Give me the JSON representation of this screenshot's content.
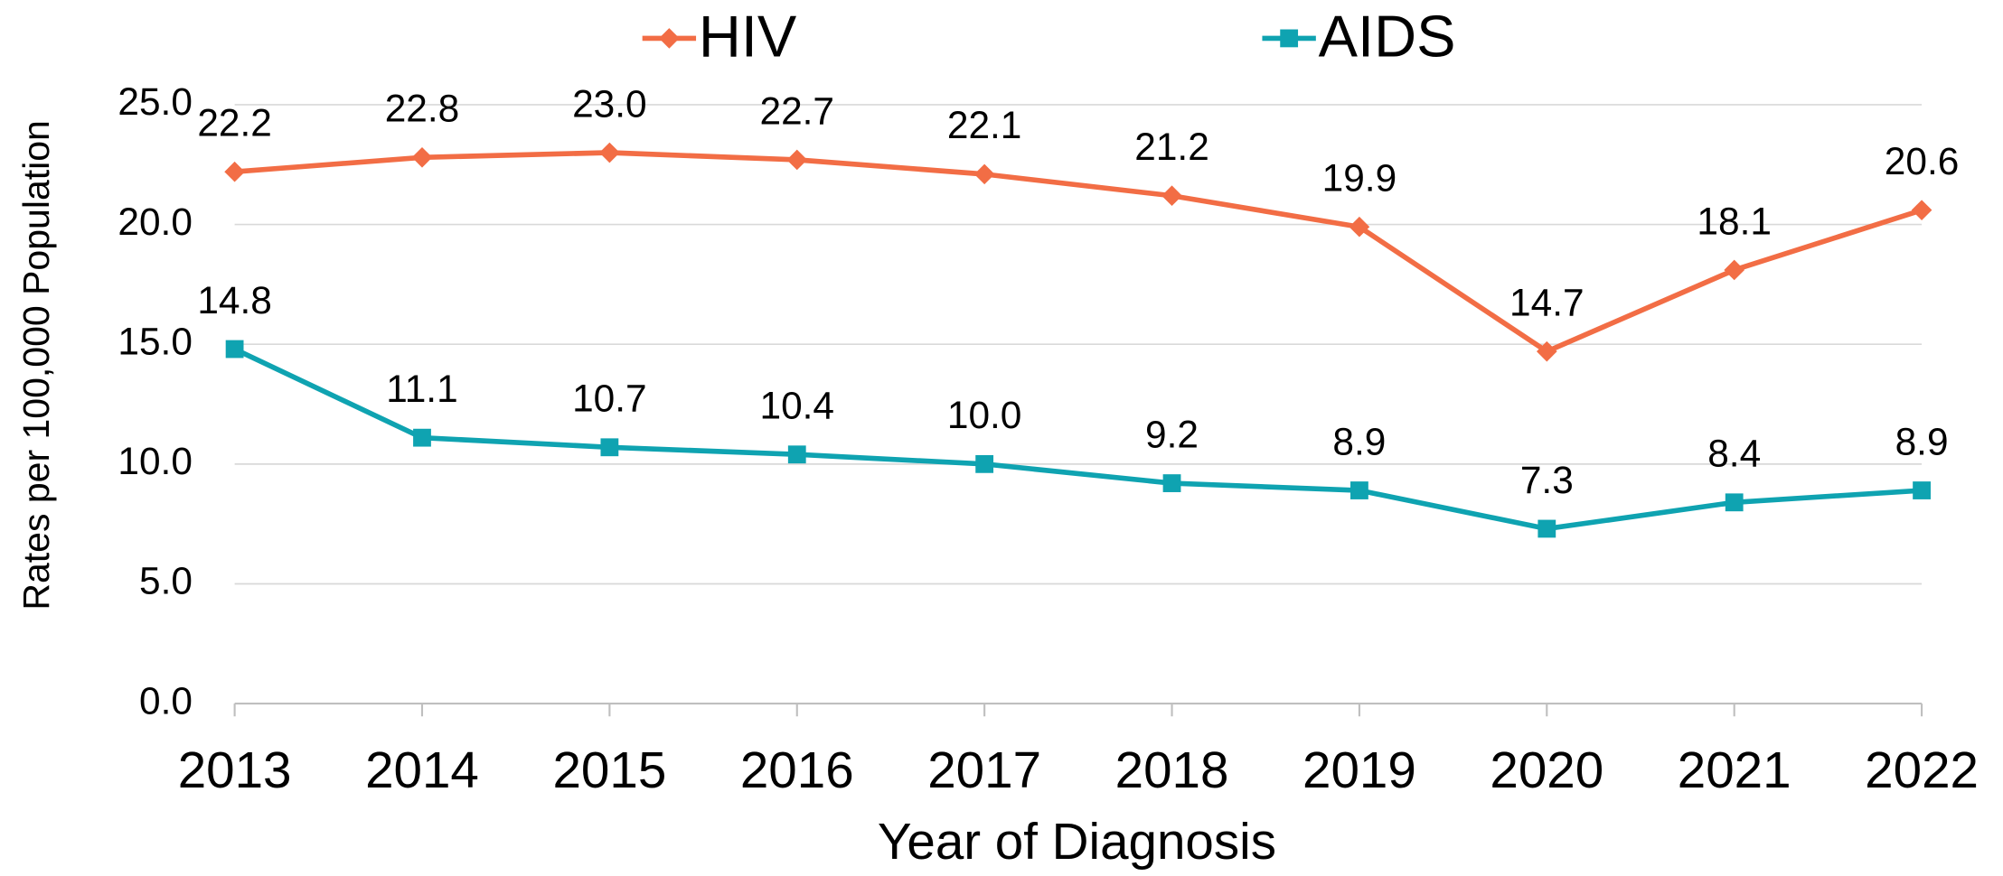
{
  "chart_data": {
    "type": "line",
    "x_label": "Year of Diagnosis",
    "y_label": "Rates per 100,000 Population",
    "categories": [
      "2013",
      "2014",
      "2015",
      "2016",
      "2017",
      "2018",
      "2019",
      "2020",
      "2021",
      "2022"
    ],
    "series": [
      {
        "name": "HIV",
        "color": "#f26d45",
        "marker": "diamond",
        "values": [
          22.2,
          22.8,
          23.0,
          22.7,
          22.1,
          21.2,
          19.9,
          14.7,
          18.1,
          20.6
        ],
        "value_labels": [
          "22.2",
          "22.8",
          "23.0",
          "22.7",
          "22.1",
          "21.2",
          "19.9",
          "14.7",
          "18.1",
          "20.6"
        ]
      },
      {
        "name": "AIDS",
        "color": "#0fa3b1",
        "marker": "square",
        "values": [
          14.8,
          11.1,
          10.7,
          10.4,
          10.0,
          9.2,
          8.9,
          7.3,
          8.4,
          8.9
        ],
        "value_labels": [
          "14.8",
          "11.1",
          "10.7",
          "10.4",
          "10.0",
          "9.2",
          "8.9",
          "7.3",
          "8.4",
          "8.9"
        ]
      }
    ],
    "ylim": [
      0,
      25
    ],
    "yticks": [
      {
        "value": 0,
        "label": "0.0"
      },
      {
        "value": 5,
        "label": "5.0"
      },
      {
        "value": 10,
        "label": "10.0"
      },
      {
        "value": 15,
        "label": "15.0"
      },
      {
        "value": 20,
        "label": "20.0"
      },
      {
        "value": 25,
        "label": "25.0"
      }
    ],
    "grid": true,
    "legend": "top"
  }
}
